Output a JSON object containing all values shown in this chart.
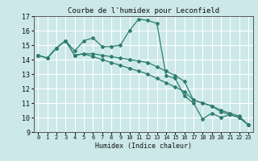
{
  "title": "Courbe de l'humidex pour Leconfield",
  "xlabel": "Humidex (Indice chaleur)",
  "bg_color": "#cce8e8",
  "grid_color": "#ffffff",
  "line_color": "#2e7d6e",
  "xlim": [
    -0.5,
    23.5
  ],
  "ylim": [
    9,
    17
  ],
  "xticks": [
    0,
    1,
    2,
    3,
    4,
    5,
    6,
    7,
    8,
    9,
    10,
    11,
    12,
    13,
    14,
    15,
    16,
    17,
    18,
    19,
    20,
    21,
    22,
    23
  ],
  "yticks": [
    9,
    10,
    11,
    12,
    13,
    14,
    15,
    16,
    17
  ],
  "series": [
    {
      "x": [
        0,
        1,
        2,
        3,
        4,
        5,
        6,
        7,
        8,
        9,
        10,
        11,
        12,
        13,
        14,
        15,
        16,
        17,
        18,
        19,
        20,
        21,
        22,
        23
      ],
      "y": [
        14.3,
        14.1,
        14.8,
        15.3,
        14.6,
        15.3,
        15.5,
        14.9,
        14.9,
        15.0,
        16.0,
        16.8,
        16.7,
        16.5,
        12.9,
        12.7,
        11.5,
        11.0,
        9.9,
        10.3,
        10.0,
        10.2,
        10.0,
        9.5
      ]
    },
    {
      "x": [
        0,
        1,
        2,
        3,
        4,
        5,
        6,
        7,
        8,
        9,
        10,
        11,
        12,
        13,
        14,
        15,
        16,
        17,
        18,
        19,
        20,
        21,
        22,
        23
      ],
      "y": [
        14.3,
        14.1,
        14.8,
        15.3,
        14.3,
        14.4,
        14.4,
        14.3,
        14.2,
        14.1,
        14.0,
        13.9,
        13.8,
        13.5,
        13.2,
        12.9,
        12.5,
        11.2,
        11.0,
        10.8,
        10.5,
        10.3,
        10.1,
        9.5
      ]
    },
    {
      "x": [
        0,
        1,
        2,
        3,
        4,
        5,
        6,
        7,
        8,
        9,
        10,
        11,
        12,
        13,
        14,
        15,
        16,
        17,
        18,
        19,
        20,
        21,
        22,
        23
      ],
      "y": [
        14.3,
        14.1,
        14.8,
        15.3,
        14.3,
        14.4,
        14.2,
        14.0,
        13.8,
        13.6,
        13.4,
        13.2,
        13.0,
        12.7,
        12.4,
        12.1,
        11.8,
        11.2,
        11.0,
        10.8,
        10.4,
        10.2,
        10.0,
        9.5
      ]
    }
  ]
}
